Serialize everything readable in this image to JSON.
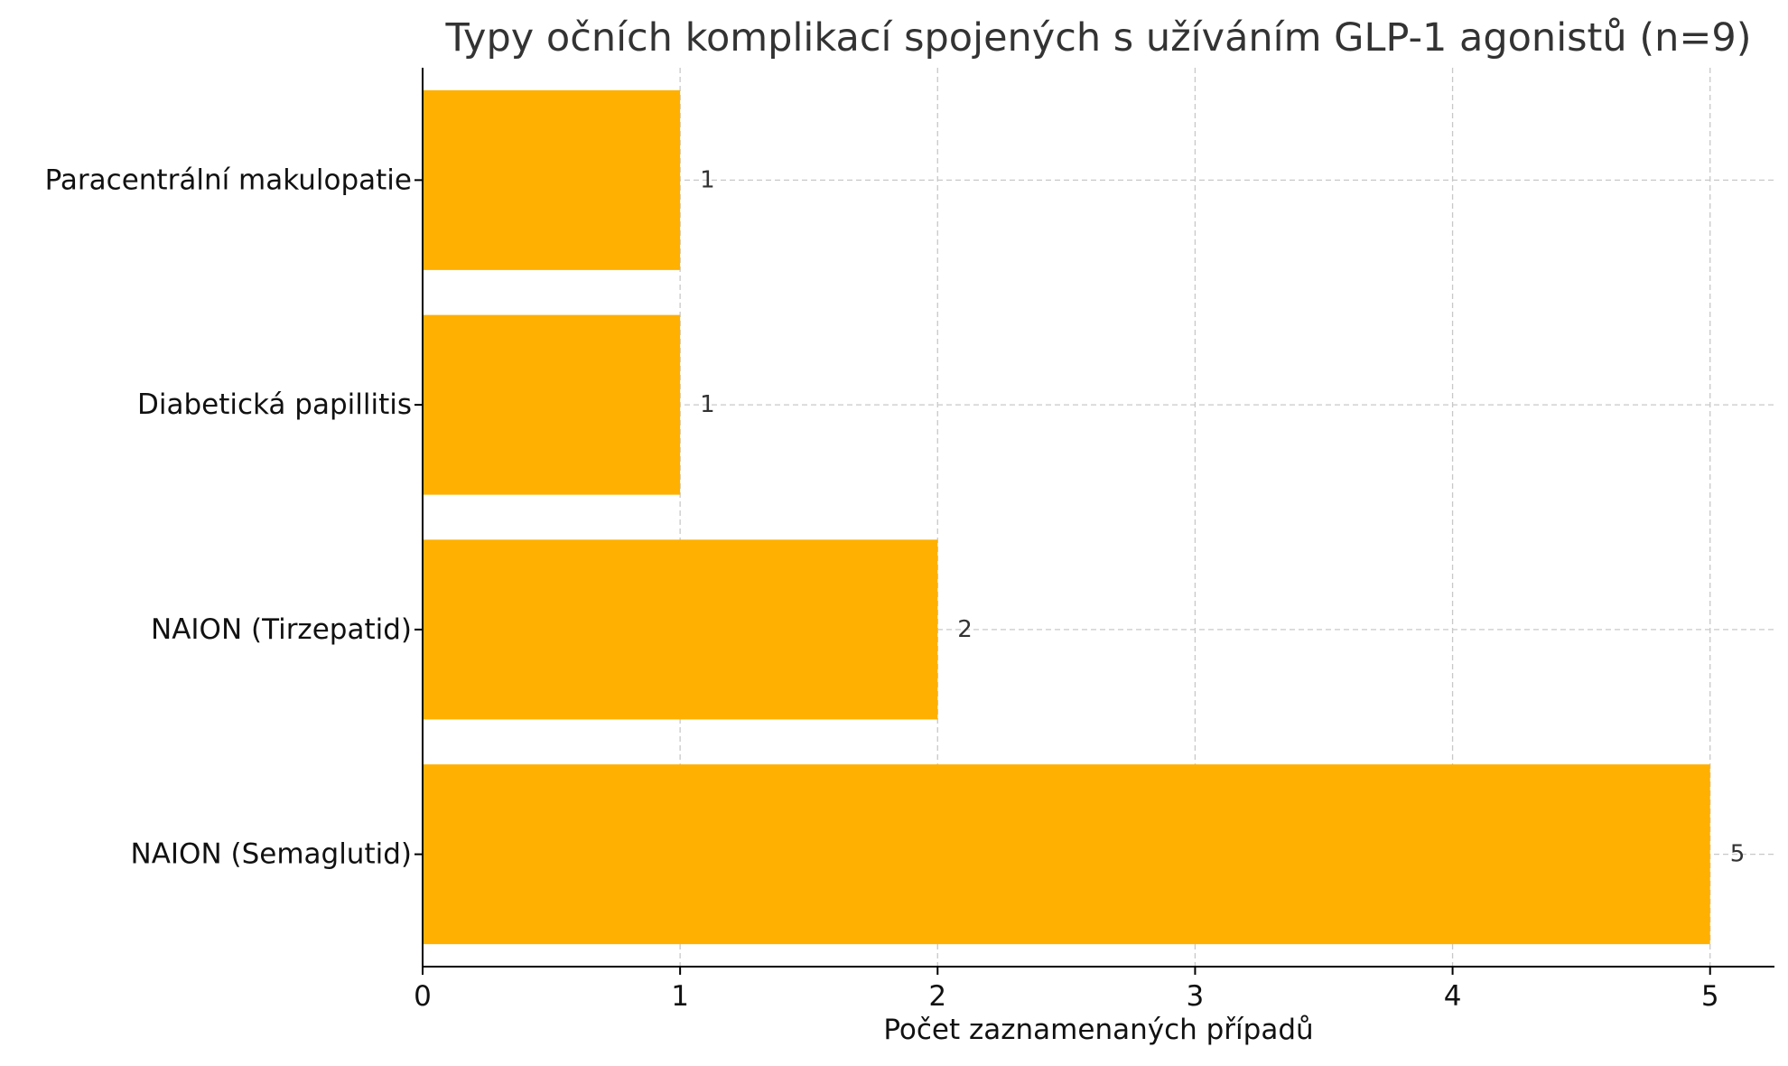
{
  "chart_data": {
    "type": "bar",
    "orientation": "horizontal",
    "title": "Typy očních komplikací spojených s užíváním GLP-1 agonistů (n=9)",
    "xlabel": "Počet zaznamenaných případů",
    "ylabel": "",
    "categories": [
      "NAION (Semaglutid)",
      "NAION (Tirzepatid)",
      "Diabetická papillitis",
      "Paracentrální makulopatie"
    ],
    "values": [
      5,
      2,
      1,
      1
    ],
    "data_labels": [
      "5",
      "2",
      "1",
      "1"
    ],
    "xlim": [
      0,
      5.25
    ],
    "x_ticks": [
      0,
      1,
      2,
      3,
      4,
      5
    ],
    "x_tick_labels": [
      "0",
      "1",
      "2",
      "3",
      "4",
      "5"
    ],
    "grid": true,
    "bar_color": "#ffb000"
  }
}
